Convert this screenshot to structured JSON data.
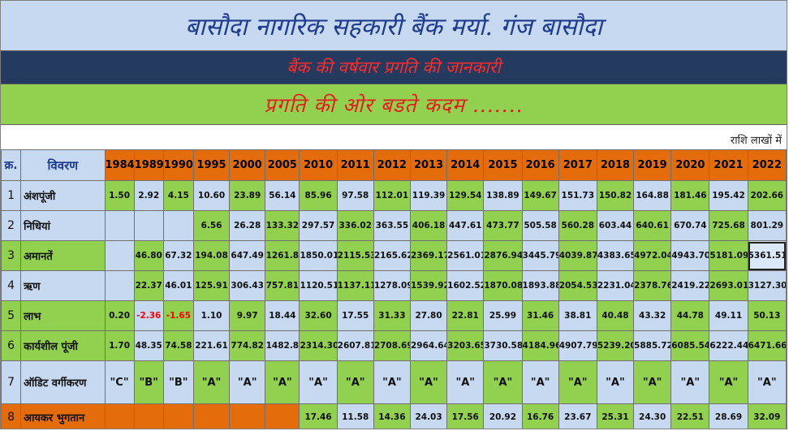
{
  "title": "बासौदा नागरिक सहकारी बैंक मर्या. गंज बासौदा",
  "subtitle": "बैंक की वर्षवार प्रगति की जानकारी",
  "slogan": "प्रगति की ओर बडते कदम .......",
  "unit_note": "राशि लाखों में",
  "header": {
    "sn": "क्र.",
    "desc": "विवरण",
    "years": [
      "1984",
      "1989",
      "1990",
      "1995",
      "2000",
      "2005",
      "2010",
      "2011",
      "2012",
      "2013",
      "2014",
      "2015",
      "2016",
      "2017",
      "2018",
      "2019",
      "2020",
      "2021",
      "2022"
    ]
  },
  "rows": [
    {
      "sn": "1",
      "label": "अंशपूंजी",
      "values": [
        "1.50",
        "2.92",
        "4.15",
        "10.60",
        "23.89",
        "56.14",
        "85.96",
        "97.58",
        "112.01",
        "119.39",
        "129.54",
        "138.89",
        "149.67",
        "151.73",
        "150.82",
        "164.88",
        "181.46",
        "195.42",
        "202.66"
      ]
    },
    {
      "sn": "2",
      "label": "निधियां",
      "values": [
        "",
        "",
        "",
        "6.56",
        "26.28",
        "133.32",
        "297.57",
        "336.02",
        "363.55",
        "406.18",
        "447.61",
        "473.77",
        "505.58",
        "560.28",
        "603.44",
        "640.61",
        "670.74",
        "725.68",
        "801.29"
      ]
    },
    {
      "sn": "3",
      "label": "अमानतें",
      "values": [
        "",
        "46.80",
        "67.32",
        "194.08",
        "647.49",
        "1261.8",
        "1850.01",
        "2115.53",
        "2165.62",
        "2369.17",
        "2561.01",
        "2876.94",
        "3445.79",
        "4039.87",
        "4383.65",
        "4972.04",
        "4943.70",
        "5181.09",
        "5361.51"
      ]
    },
    {
      "sn": "4",
      "label": "ऋण",
      "values": [
        "",
        "22.37",
        "46.01",
        "125.91",
        "306.43",
        "757.81",
        "1120.51",
        "1137.11",
        "1278.09",
        "1539.92",
        "1602.52",
        "1870.08",
        "1893.88",
        "2054.53",
        "2231.04",
        "2378.76",
        "2419.22",
        "2693.01",
        "3127.30"
      ]
    },
    {
      "sn": "5",
      "label": "लाभ",
      "values": [
        "0.20",
        "-2.36",
        "-1.65",
        "1.10",
        "9.97",
        "18.44",
        "32.60",
        "17.55",
        "31.33",
        "27.80",
        "22.81",
        "25.99",
        "31.46",
        "38.81",
        "40.48",
        "43.32",
        "44.78",
        "49.11",
        "50.13"
      ]
    },
    {
      "sn": "6",
      "label": "कार्यशील पूंजी",
      "values": [
        "1.70",
        "48.35",
        "74.58",
        "221.61",
        "774.82",
        "1482.8",
        "2314.30",
        "2607.81",
        "2708.69",
        "2964.64",
        "3203.65",
        "3730.58",
        "4184.96",
        "4907.79",
        "5239.20",
        "5885.72",
        "6085.54",
        "6222.44",
        "6471.66"
      ]
    },
    {
      "sn": "7",
      "label": "ऑडिट वर्गीकरण",
      "values": [
        "\"C\"",
        "\"B\"",
        "\"B\"",
        "\"A\"",
        "\"A\"",
        "\"A\"",
        "\"A\"",
        "\"A\"",
        "\"A\"",
        "\"A\"",
        "\"A\"",
        "\"A\"",
        "\"A\"",
        "\"A\"",
        "\"A\"",
        "\"A\"",
        "\"A\"",
        "\"A\"",
        "\"A\""
      ]
    },
    {
      "sn": "8",
      "label": "आयकर भुगतान",
      "values": [
        "",
        "",
        "",
        "",
        "",
        "",
        "17.46",
        "11.58",
        "14.36",
        "24.03",
        "17.56",
        "20.92",
        "16.76",
        "23.67",
        "25.31",
        "24.30",
        "22.51",
        "28.69",
        "32.09"
      ]
    }
  ]
}
